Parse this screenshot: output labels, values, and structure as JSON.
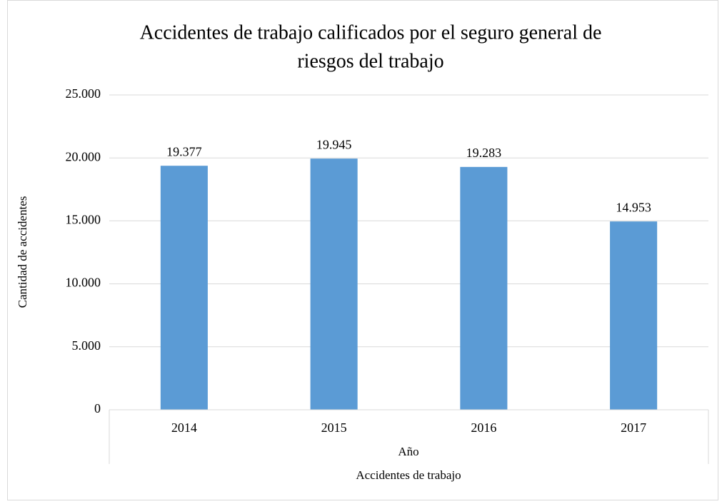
{
  "chart_data": {
    "type": "bar",
    "title": [
      "Accidentes de trabajo calificados por el seguro general de",
      "riesgos del trabajo"
    ],
    "y_label": "Cantidad de accidentes",
    "x_label": "Año",
    "categories": [
      "2014",
      "2015",
      "2016",
      "2017"
    ],
    "series": [
      {
        "name": "Accidentes de trabajo",
        "color": "#5b9bd5",
        "values": [
          19377,
          19945,
          19283,
          14953
        ],
        "value_labels": [
          "19.377",
          "19.945",
          "19.283",
          "14.953"
        ]
      }
    ],
    "ylim": [
      0,
      25000
    ],
    "yticks": [
      0,
      {
        "value": 5000,
        "label": "5.000"
      },
      {
        "value": 10000,
        "label": "10.000"
      },
      {
        "value": 15000,
        "label": "15.000"
      },
      {
        "value": 20000,
        "label": "20.000"
      },
      {
        "value": 25000,
        "label": "25.000"
      }
    ],
    "grid": true
  }
}
